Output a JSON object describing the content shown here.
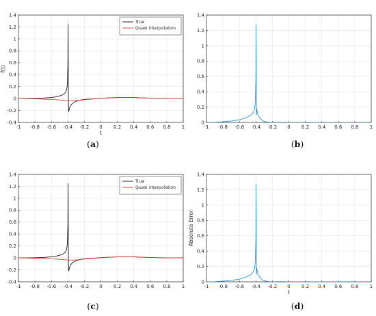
{
  "colors": {
    "true_curve": "#111111",
    "quasi_curve": "#e8312d",
    "error_curve": "#1f8fd0",
    "grid": "#e6e6e6",
    "axis": "#262626"
  },
  "chart_data": [
    {
      "id": "a",
      "type": "line",
      "caption": "a",
      "xlabel": "t",
      "ylabel": "f(t)",
      "xlim": [
        -1,
        1
      ],
      "ylim": [
        -0.4,
        1.4
      ],
      "xticks": [
        "-1",
        "-0.8",
        "-0.6",
        "-0.4",
        "-0.2",
        "0",
        "0.2",
        "0.4",
        "0.6",
        "0.8",
        "1"
      ],
      "yticks": [
        "-0.4",
        "-0.2",
        "0",
        "0.2",
        "0.4",
        "0.6",
        "0.8",
        "1",
        "1.2",
        "1.4"
      ],
      "grid": true,
      "legend_position": "top-right",
      "series": [
        {
          "name": "True",
          "color": "#111111",
          "x": [
            -1,
            -0.9,
            -0.8,
            -0.7,
            -0.6,
            -0.55,
            -0.5,
            -0.47,
            -0.45,
            -0.43,
            -0.42,
            -0.41,
            -0.405,
            -0.4,
            -0.397,
            -0.395,
            -0.393,
            -0.39,
            -0.385,
            -0.38,
            -0.37,
            -0.35,
            -0.32,
            -0.3,
            -0.25,
            -0.2,
            -0.1,
            0,
            0.1,
            0.2,
            0.3,
            0.4,
            0.5,
            0.6,
            0.7,
            0.8,
            0.9,
            1
          ],
          "y": [
            0.0,
            0.0,
            0.003,
            0.008,
            0.018,
            0.028,
            0.045,
            0.06,
            0.075,
            0.1,
            0.13,
            0.19,
            0.3,
            0.55,
            1.25,
            0.3,
            -0.1,
            -0.22,
            -0.19,
            -0.16,
            -0.12,
            -0.09,
            -0.06,
            -0.045,
            -0.025,
            -0.015,
            -0.005,
            0.005,
            0.012,
            0.018,
            0.02,
            0.018,
            0.012,
            0.007,
            0.004,
            0.002,
            0.001,
            0.0
          ]
        },
        {
          "name": "Quasi interpolation",
          "color": "#e8312d",
          "x": [
            -1,
            -0.9,
            -0.8,
            -0.7,
            -0.6,
            -0.5,
            -0.45,
            -0.4,
            -0.35,
            -0.3,
            -0.25,
            -0.2,
            -0.1,
            0,
            0.1,
            0.2,
            0.3,
            0.4,
            0.5,
            0.6,
            0.7,
            0.8,
            0.9,
            1
          ],
          "y": [
            0.0,
            -0.002,
            -0.005,
            -0.01,
            -0.016,
            -0.024,
            -0.03,
            -0.035,
            -0.036,
            -0.034,
            -0.028,
            -0.02,
            -0.008,
            0.004,
            0.012,
            0.017,
            0.019,
            0.017,
            0.012,
            0.007,
            0.004,
            0.002,
            0.001,
            0.0
          ]
        }
      ]
    },
    {
      "id": "b",
      "type": "line",
      "caption": "b",
      "xlabel": "",
      "ylabel": "",
      "xlim": [
        -1,
        1
      ],
      "ylim": [
        0,
        1.4
      ],
      "xticks": [
        "-1",
        "-0.8",
        "-0.6",
        "-0.4",
        "-0.2",
        "0",
        "0.2",
        "0.4",
        "0.6",
        "0.8",
        "1"
      ],
      "yticks": [
        "0",
        "0.2",
        "0.4",
        "0.6",
        "0.8",
        "1",
        "1.2",
        "1.4"
      ],
      "grid": true,
      "legend_position": "none",
      "series": [
        {
          "color": "#1f8fd0",
          "x": [
            -1,
            -0.9,
            -0.8,
            -0.7,
            -0.6,
            -0.55,
            -0.5,
            -0.47,
            -0.45,
            -0.43,
            -0.42,
            -0.41,
            -0.405,
            -0.4,
            -0.397,
            -0.395,
            -0.393,
            -0.39,
            -0.385,
            -0.38,
            -0.37,
            -0.35,
            -0.32,
            -0.3,
            -0.25,
            -0.2,
            -0.1,
            0,
            0.1,
            0.2,
            0.3,
            0.4,
            0.5,
            0.6,
            0.7,
            0.8,
            0.9,
            1
          ],
          "y": [
            0.0,
            0.002,
            0.008,
            0.018,
            0.034,
            0.05,
            0.07,
            0.09,
            0.105,
            0.135,
            0.165,
            0.23,
            0.34,
            0.58,
            1.27,
            0.33,
            0.1,
            0.18,
            0.15,
            0.12,
            0.085,
            0.055,
            0.025,
            0.012,
            0.004,
            0.001,
            0.003,
            0.001,
            0.0,
            0.002,
            0.001,
            0.001,
            0.0,
            0.0,
            0.0,
            0.0,
            0.0,
            0.0
          ]
        }
      ]
    },
    {
      "id": "c",
      "type": "line",
      "caption": "c",
      "xlabel": "",
      "ylabel": "",
      "xlim": [
        -1,
        1
      ],
      "ylim": [
        -0.4,
        1.4
      ],
      "xticks": [
        "-1",
        "-0.8",
        "-0.6",
        "-0.4",
        "-0.2",
        "0",
        "0.2",
        "0.4",
        "0.6",
        "0.8",
        "1"
      ],
      "yticks": [
        "-0.4",
        "-0.2",
        "0",
        "0.2",
        "0.4",
        "0.6",
        "0.8",
        "1",
        "1.2",
        "1.4"
      ],
      "grid": true,
      "legend_position": "top-right",
      "series": [
        {
          "name": "True",
          "color": "#111111",
          "x": [
            -1,
            -0.9,
            -0.8,
            -0.7,
            -0.6,
            -0.55,
            -0.5,
            -0.47,
            -0.45,
            -0.43,
            -0.42,
            -0.41,
            -0.405,
            -0.4,
            -0.397,
            -0.395,
            -0.393,
            -0.39,
            -0.385,
            -0.38,
            -0.37,
            -0.35,
            -0.32,
            -0.3,
            -0.25,
            -0.2,
            -0.1,
            0,
            0.1,
            0.2,
            0.3,
            0.4,
            0.5,
            0.6,
            0.7,
            0.8,
            0.9,
            1
          ],
          "y": [
            0.0,
            0.0,
            0.003,
            0.008,
            0.018,
            0.028,
            0.045,
            0.06,
            0.075,
            0.1,
            0.13,
            0.19,
            0.3,
            0.55,
            1.25,
            0.3,
            -0.1,
            -0.22,
            -0.19,
            -0.16,
            -0.12,
            -0.09,
            -0.06,
            -0.045,
            -0.025,
            -0.015,
            -0.005,
            0.005,
            0.012,
            0.018,
            0.02,
            0.018,
            0.012,
            0.007,
            0.004,
            0.002,
            0.001,
            0.0
          ]
        },
        {
          "name": "Quasi interpolation",
          "color": "#e8312d",
          "x": [
            -1,
            -0.9,
            -0.8,
            -0.7,
            -0.6,
            -0.5,
            -0.45,
            -0.4,
            -0.35,
            -0.3,
            -0.25,
            -0.2,
            -0.1,
            0,
            0.1,
            0.2,
            0.3,
            0.4,
            0.5,
            0.6,
            0.7,
            0.8,
            0.9,
            1
          ],
          "y": [
            0.0,
            -0.002,
            -0.005,
            -0.01,
            -0.016,
            -0.024,
            -0.03,
            -0.035,
            -0.036,
            -0.034,
            -0.028,
            -0.02,
            -0.008,
            0.004,
            0.012,
            0.017,
            0.019,
            0.017,
            0.012,
            0.007,
            0.004,
            0.002,
            0.001,
            0.0
          ]
        }
      ]
    },
    {
      "id": "d",
      "type": "line",
      "caption": "d",
      "xlabel": "t",
      "ylabel": "Absolute Error",
      "xlim": [
        -1,
        1
      ],
      "ylim": [
        0,
        1.4
      ],
      "xticks": [
        "-1",
        "-0.8",
        "-0.6",
        "-0.4",
        "-0.2",
        "0",
        "0.2",
        "0.4",
        "0.6",
        "0.8",
        "1"
      ],
      "yticks": [
        "0",
        "0.2",
        "0.4",
        "0.6",
        "0.8",
        "1",
        "1.2",
        "1.4"
      ],
      "grid": true,
      "legend_position": "none",
      "series": [
        {
          "color": "#1f8fd0",
          "x": [
            -1,
            -0.9,
            -0.8,
            -0.7,
            -0.6,
            -0.55,
            -0.5,
            -0.47,
            -0.45,
            -0.43,
            -0.42,
            -0.41,
            -0.405,
            -0.4,
            -0.397,
            -0.395,
            -0.393,
            -0.39,
            -0.385,
            -0.38,
            -0.37,
            -0.35,
            -0.32,
            -0.3,
            -0.25,
            -0.2,
            -0.1,
            0,
            0.1,
            0.2,
            0.3,
            0.4,
            0.5,
            0.6,
            0.7,
            0.8,
            0.9,
            1
          ],
          "y": [
            0.0,
            0.002,
            0.008,
            0.018,
            0.034,
            0.05,
            0.07,
            0.09,
            0.105,
            0.135,
            0.165,
            0.23,
            0.34,
            0.58,
            1.27,
            0.33,
            0.1,
            0.18,
            0.15,
            0.12,
            0.085,
            0.055,
            0.025,
            0.012,
            0.004,
            0.001,
            0.003,
            0.001,
            0.0,
            0.002,
            0.001,
            0.001,
            0.0,
            0.0,
            0.0,
            0.0,
            0.0,
            0.0
          ]
        }
      ]
    }
  ]
}
